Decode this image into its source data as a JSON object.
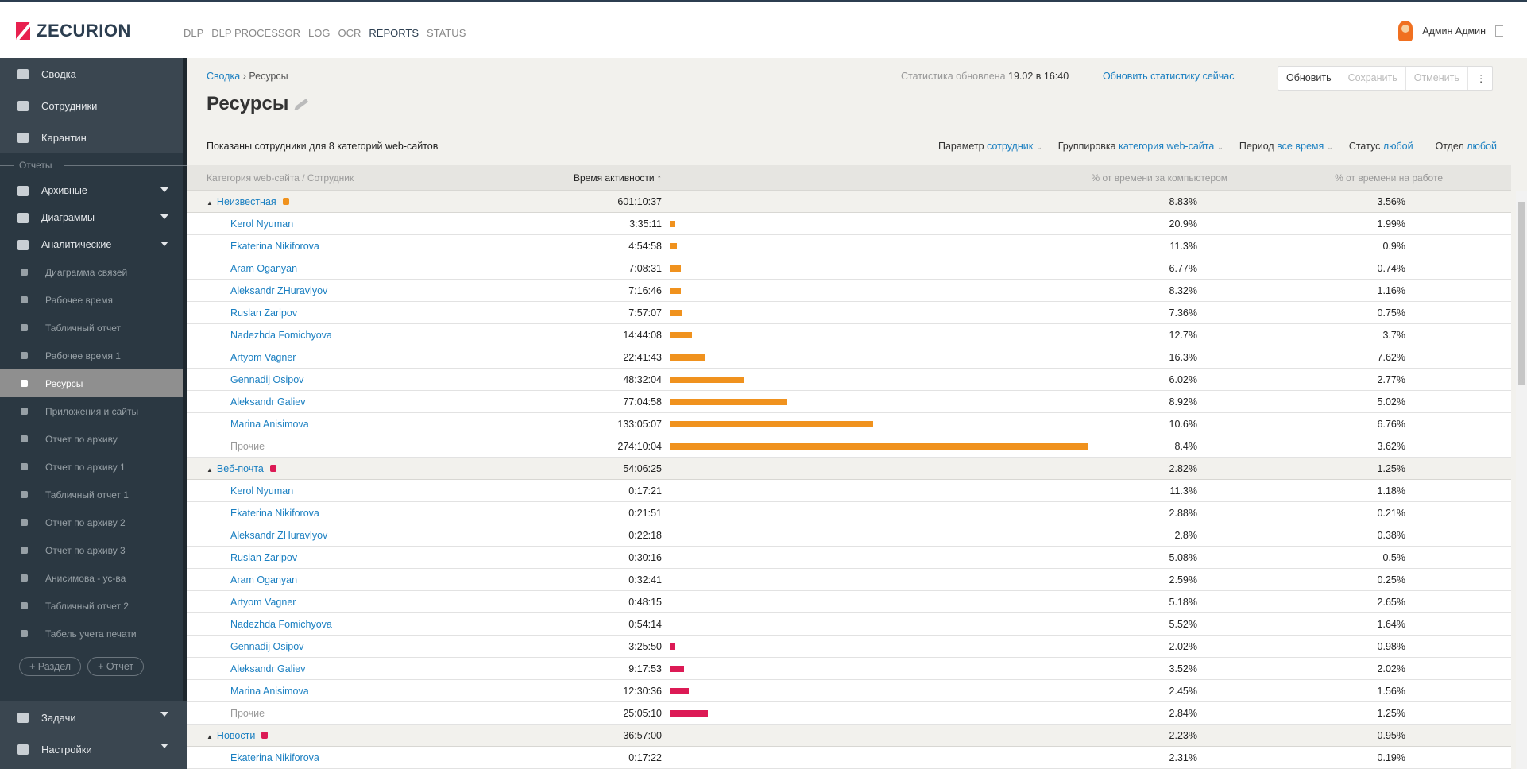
{
  "brand": "ZECURION",
  "topnav": [
    "DLP",
    "DLP PROCESSOR",
    "LOG",
    "OCR",
    "REPORTS",
    "STATUS"
  ],
  "topnav_active": "REPORTS",
  "user": "Админ Админ",
  "sidebar": {
    "main": [
      "Сводка",
      "Сотрудники",
      "Карантин"
    ],
    "section": "Отчеты",
    "folders": [
      "Архивные",
      "Диаграммы",
      "Аналитические"
    ],
    "items": [
      "Диаграмма связей",
      "Рабочее время",
      "Табличный отчет",
      "Рабочее время 1",
      "Ресурсы",
      "Приложения и сайты",
      "Отчет по архиву",
      "Отчет по архиву 1",
      "Табличный отчет 1",
      "Отчет по архиву 2",
      "Отчет по архиву 3",
      "Анисимова - ус-ва",
      "Табличный отчет 2",
      "Табель учета печати"
    ],
    "active": "Ресурсы",
    "add_section": "+ Раздел",
    "add_report": "+ Отчет",
    "bottom": [
      "Задачи",
      "Настройки"
    ]
  },
  "breadcrumb": {
    "root": "Сводка",
    "current": "Ресурсы"
  },
  "page_title": "Ресурсы",
  "stats": {
    "label": "Статистика обновлена",
    "value": "19.02 в 16:40",
    "refresh_link": "Обновить статистику сейчас"
  },
  "toolbar": {
    "update": "Обновить",
    "save": "Сохранить",
    "cancel": "Отменить",
    "more": "⋮"
  },
  "summary": "Показаны сотрудники для 8 категорий web-сайтов",
  "filters": {
    "param_label": "Параметр",
    "param_value": "сотрудник",
    "group_label": "Группировка",
    "group_value": "категория web-сайта",
    "period_label": "Период",
    "period_value": "все время",
    "status_label": "Статус",
    "status_value": "любой",
    "dept_label": "Отдел",
    "dept_value": "любой"
  },
  "table": {
    "headers": {
      "name": "Категория web-сайта / Сотрудник",
      "time": "Время активности ↑",
      "pct_computer": "% от времени за компьютером",
      "pct_work": "% от времени на работе"
    },
    "groups": [
      {
        "name": "Неизвестная",
        "color": "#f0921e",
        "time": "601:10:37",
        "p1": "8.83%",
        "p2": "3.56%",
        "rows": [
          {
            "name": "Kerol Nyuman",
            "time": "3:35:11",
            "p1": "20.9%",
            "p2": "1.99%"
          },
          {
            "name": "Ekaterina Nikiforova",
            "time": "4:54:58",
            "p1": "11.3%",
            "p2": "0.9%"
          },
          {
            "name": "Aram Oganyan",
            "time": "7:08:31",
            "p1": "6.77%",
            "p2": "0.74%"
          },
          {
            "name": "Aleksandr ZHuravlyov",
            "time": "7:16:46",
            "p1": "8.32%",
            "p2": "1.16%"
          },
          {
            "name": "Ruslan Zaripov",
            "time": "7:57:07",
            "p1": "7.36%",
            "p2": "0.75%"
          },
          {
            "name": "Nadezhda Fomichyova",
            "time": "14:44:08",
            "p1": "12.7%",
            "p2": "3.7%"
          },
          {
            "name": "Artyom Vagner",
            "time": "22:41:43",
            "p1": "16.3%",
            "p2": "7.62%"
          },
          {
            "name": "Gennadij Osipov",
            "time": "48:32:04",
            "p1": "6.02%",
            "p2": "2.77%"
          },
          {
            "name": "Aleksandr Galiev",
            "time": "77:04:58",
            "p1": "8.92%",
            "p2": "5.02%"
          },
          {
            "name": "Marina Anisimova",
            "time": "133:05:07",
            "p1": "10.6%",
            "p2": "6.76%"
          },
          {
            "name": "Прочие",
            "time": "274:10:04",
            "p1": "8.4%",
            "p2": "3.62%",
            "other": true
          }
        ]
      },
      {
        "name": "Веб-почта",
        "color": "#dc1a55",
        "time": "54:06:25",
        "p1": "2.82%",
        "p2": "1.25%",
        "rows": [
          {
            "name": "Kerol Nyuman",
            "time": "0:17:21",
            "p1": "11.3%",
            "p2": "1.18%"
          },
          {
            "name": "Ekaterina Nikiforova",
            "time": "0:21:51",
            "p1": "2.88%",
            "p2": "0.21%"
          },
          {
            "name": "Aleksandr ZHuravlyov",
            "time": "0:22:18",
            "p1": "2.8%",
            "p2": "0.38%"
          },
          {
            "name": "Ruslan Zaripov",
            "time": "0:30:16",
            "p1": "5.08%",
            "p2": "0.5%"
          },
          {
            "name": "Aram Oganyan",
            "time": "0:32:41",
            "p1": "2.59%",
            "p2": "0.25%"
          },
          {
            "name": "Artyom Vagner",
            "time": "0:48:15",
            "p1": "5.18%",
            "p2": "2.65%"
          },
          {
            "name": "Nadezhda Fomichyova",
            "time": "0:54:14",
            "p1": "5.52%",
            "p2": "1.64%"
          },
          {
            "name": "Gennadij Osipov",
            "time": "3:25:50",
            "p1": "2.02%",
            "p2": "0.98%"
          },
          {
            "name": "Aleksandr Galiev",
            "time": "9:17:53",
            "p1": "3.52%",
            "p2": "2.02%"
          },
          {
            "name": "Marina Anisimova",
            "time": "12:30:36",
            "p1": "2.45%",
            "p2": "1.56%"
          },
          {
            "name": "Прочие",
            "time": "25:05:10",
            "p1": "2.84%",
            "p2": "1.25%",
            "other": true
          }
        ]
      },
      {
        "name": "Новости",
        "color": "#dc1a55",
        "time": "36:57:00",
        "p1": "2.23%",
        "p2": "0.95%",
        "rows": [
          {
            "name": "Ekaterina Nikiforova",
            "time": "0:17:22",
            "p1": "2.31%",
            "p2": "0.19%"
          }
        ]
      }
    ]
  }
}
